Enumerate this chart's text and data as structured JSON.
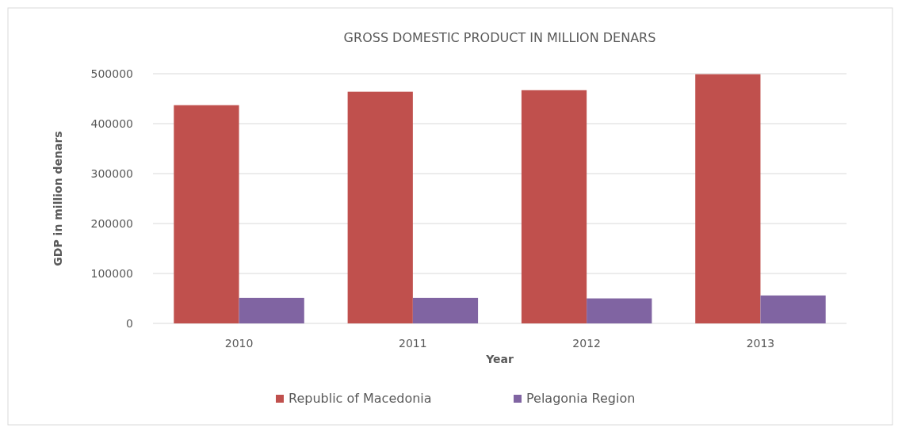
{
  "chart_data": {
    "type": "bar",
    "title": "GROSS DOMESTIC PRODUCT IN MILLION DENARS",
    "xlabel": "Year",
    "ylabel": "GDP in million denars",
    "categories": [
      "2010",
      "2011",
      "2012",
      "2013"
    ],
    "series": [
      {
        "name": "Republic of Macedonia",
        "color": "#c0504d",
        "values": [
          437000,
          464000,
          467000,
          499000
        ]
      },
      {
        "name": "Pelagonia Region",
        "color": "#8064a2",
        "values": [
          51000,
          51000,
          50000,
          56000
        ]
      }
    ],
    "ylim": [
      0,
      500000
    ],
    "yticks": [
      0,
      100000,
      200000,
      300000,
      400000,
      500000
    ],
    "grid": "y",
    "legend": "bottom"
  }
}
